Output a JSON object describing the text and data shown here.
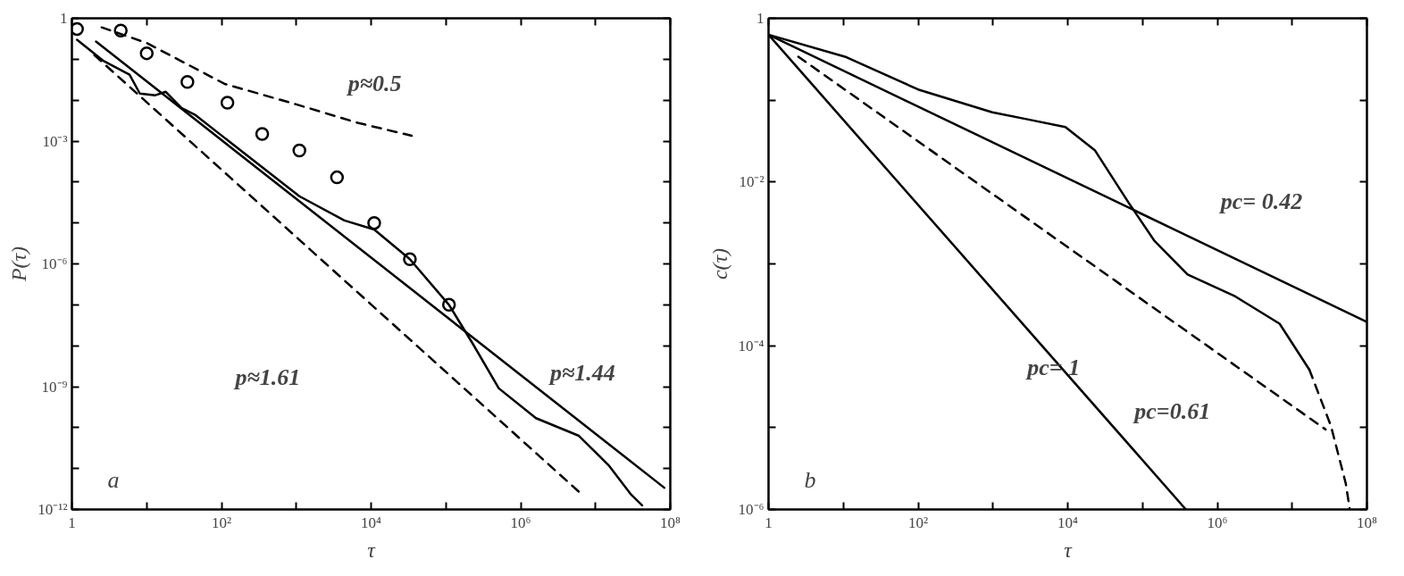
{
  "chart_data": [
    {
      "type": "line",
      "xlabel": "τ",
      "ylabel": "P(τ)",
      "log": "xy",
      "grid": false,
      "xlim": [
        1,
        100000000
      ],
      "ylim": [
        1e-12,
        1
      ],
      "xticks": [
        {
          "value": 1,
          "label": "1"
        },
        {
          "value": 10,
          "label": null
        },
        {
          "value": 100,
          "label": "10²"
        },
        {
          "value": 1000,
          "label": null
        },
        {
          "value": 10000,
          "label": "10⁴"
        },
        {
          "value": 100000,
          "label": null
        },
        {
          "value": 1000000,
          "label": "10⁶"
        },
        {
          "value": 10000000,
          "label": null
        },
        {
          "value": 100000000,
          "label": "10⁸"
        }
      ],
      "yticks": [
        {
          "value": 1,
          "label": "1"
        },
        {
          "value": 0.1,
          "label": null
        },
        {
          "value": 0.01,
          "label": null
        },
        {
          "value": 0.001,
          "label": "10⁻³"
        },
        {
          "value": 0.0001,
          "label": null
        },
        {
          "value": 1e-05,
          "label": null
        },
        {
          "value": 1e-06,
          "label": "10⁻⁶"
        },
        {
          "value": 1e-07,
          "label": null
        },
        {
          "value": 1e-08,
          "label": null
        },
        {
          "value": 1e-09,
          "label": "10⁻⁹"
        },
        {
          "value": 1e-10,
          "label": null
        },
        {
          "value": 1e-11,
          "label": null
        },
        {
          "value": 1e-12,
          "label": "10⁻¹²"
        }
      ],
      "series": [
        {
          "type": "scatter",
          "marker": "circle",
          "color": "#000000",
          "x": [
            1.17,
            4.5,
            10,
            35,
            120,
            350,
            1100,
            3500,
            11000,
            33000,
            110000
          ],
          "values": [
            0.55,
            0.5,
            0.14,
            0.028,
            0.0087,
            0.0015,
            0.00059,
            0.00013,
            1e-05,
            1.3e-06,
            1e-07
          ]
        },
        {
          "line_style": "dashed",
          "color": "#000000",
          "x": [
            2.5,
            10,
            110,
            1000,
            6600,
            35000
          ],
          "values": [
            0.6,
            0.25,
            0.025,
            0.0079,
            0.0028,
            0.00135
          ]
        },
        {
          "line_style": "dashed",
          "color": "#000000",
          "x": [
            2.0,
            6300000
          ],
          "values": [
            0.126,
            2.5e-12
          ]
        },
        {
          "line_style": "solid",
          "color": "#000000",
          "x": [
            2.1,
            83000000
          ],
          "values": [
            0.27,
            3.4e-12
          ]
        },
        {
          "line_style": "solid",
          "color": "#000000",
          "x": [
            1.17,
            2.6,
            5.9,
            8.1,
            13,
            18,
            29,
            45,
            110,
            350,
            1100,
            4400,
            11000,
            33000,
            110000,
            230000,
            510000,
            1600000,
            6000000,
            15000000,
            30000000,
            42000000
          ],
          "values": [
            0.3,
            0.093,
            0.042,
            0.0145,
            0.0132,
            0.016,
            0.0065,
            0.0043,
            0.0012,
            0.00023,
            4.5e-05,
            1.15e-05,
            6.9e-06,
            1.3e-06,
            1e-07,
            1.1e-08,
            9.1e-10,
            1.7e-10,
            6.3e-11,
            1.2e-11,
            2.3e-12,
            1.26e-12
          ]
        }
      ],
      "annotations": [
        "p≈0.5",
        "p≈1.61",
        "p≈1.44",
        "a"
      ]
    },
    {
      "type": "line",
      "xlabel": "τ",
      "ylabel": "c(τ)",
      "log": "xy",
      "grid": false,
      "xlim": [
        1,
        100000000
      ],
      "ylim": [
        1e-06,
        1
      ],
      "xticks": [
        {
          "value": 1,
          "label": "1"
        },
        {
          "value": 10,
          "label": null
        },
        {
          "value": 100,
          "label": "10²"
        },
        {
          "value": 1000,
          "label": null
        },
        {
          "value": 10000,
          "label": "10⁴"
        },
        {
          "value": 100000,
          "label": null
        },
        {
          "value": 1000000,
          "label": "10⁶"
        },
        {
          "value": 10000000,
          "label": null
        },
        {
          "value": 100000000,
          "label": "10⁸"
        }
      ],
      "yticks": [
        {
          "value": 1,
          "label": "1"
        },
        {
          "value": 0.1,
          "label": null
        },
        {
          "value": 0.01,
          "label": "10⁻²"
        },
        {
          "value": 0.001,
          "label": null
        },
        {
          "value": 0.0001,
          "label": "10⁻⁴"
        },
        {
          "value": 1e-05,
          "label": null
        },
        {
          "value": 1e-06,
          "label": "10⁻⁶"
        }
      ],
      "series": [
        {
          "line_style": "solid",
          "color": "#000000",
          "x": [
            1,
            380000
          ],
          "values": [
            0.63,
            1e-06
          ]
        },
        {
          "line_style": "solid",
          "color": "#000000",
          "x": [
            1,
            100000000
          ],
          "values": [
            0.63,
            0.000195
          ]
        },
        {
          "line_style": "dashed",
          "color": "#000000",
          "x": [
            2.5,
            28000000
          ],
          "values": [
            0.34,
            9.5e-06
          ]
        },
        {
          "line_style": "solid",
          "color": "#000000",
          "x": [
            1,
            10.5,
            100,
            980,
            3000,
            9300,
            23000,
            65000,
            145000,
            400000,
            1740000,
            6800000,
            17000000
          ],
          "values": [
            0.63,
            0.34,
            0.135,
            0.071,
            0.058,
            0.047,
            0.0245,
            0.0056,
            0.0019,
            0.00074,
            0.0004,
            0.000186,
            5.1e-05
          ]
        },
        {
          "line_style": "dashed",
          "color": "#000000",
          "x": [
            17000000,
            33000000,
            52000000,
            59000000
          ],
          "values": [
            5.1e-05,
            1.05e-05,
            2.1e-06,
            1e-06
          ]
        }
      ],
      "annotations": [
        "pc= 0.42",
        "pc= 1",
        "pc=0.61",
        "b"
      ]
    }
  ]
}
